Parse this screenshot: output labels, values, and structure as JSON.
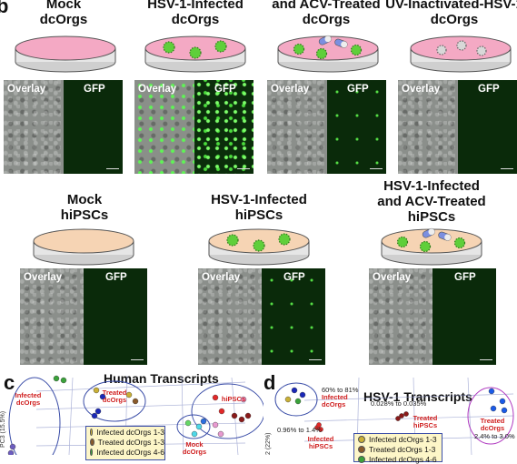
{
  "panel_a": {
    "letter": "b",
    "titles": [
      {
        "line1": "Mock",
        "line2": "dcOrgs"
      },
      {
        "line1": "HSV-1-Infected",
        "line2": "dcOrgs"
      },
      {
        "line1": "and ACV-Treated",
        "line2": "dcOrgs"
      },
      {
        "line1": "UV-Inactivated-HSV-1",
        "line2": "dcOrgs"
      }
    ],
    "overlay_label": "Overlay",
    "gfp_label": "GFP"
  },
  "panel_b": {
    "titles": [
      {
        "line1": "Mock",
        "line2": "hiPSCs"
      },
      {
        "line1": "HSV-1-Infected",
        "line2": "hiPSCs"
      },
      {
        "line1": "HSV-1-Infected",
        "line2": "and ACV-Treated",
        "line3": "hiPSCs"
      }
    ],
    "overlay_label": "Overlay",
    "gfp_label": "GFP"
  },
  "panel_c": {
    "letter": "c",
    "title": "Human Transcripts",
    "axis_label": "PC3 (15.5%)",
    "groups": {
      "infected": "Infected\ndcOrgs",
      "treated": "Treated\ndcOrgs",
      "hipscs": "hiPSCs",
      "mock": "Mock\ndcOrgs"
    },
    "legend": [
      "Infected dcOrgs 1-3",
      "Treated dcOrgs 1-3",
      "Infected dcOrgs 4-6"
    ]
  },
  "panel_d": {
    "letter": "d",
    "title": "HSV-1 Transcripts",
    "axis_label": "2 (22%)",
    "groups": {
      "infected_dcorgs": "Infected\ndcOrgs",
      "treated_hipscs": "Treated\nhiPSCs",
      "infected_hipscs": "Infected\nhiPSCs",
      "treated_dcorgs": "Treated\ndcOrgs"
    },
    "ranges": {
      "infected_dcorgs": "60% to 81%",
      "treated_hipscs": "0.028% to 0.035%",
      "infected_hipscs": "0.96% to 1.4%",
      "treated_dcorgs": "2.4% to 3.0%"
    },
    "legend": [
      "Infected dcOrgs 1-3",
      "Treated dcOrgs 1-3",
      "Infected dcOrgs 4-6"
    ]
  },
  "colors": {
    "dish_pink": "#f4a9c4",
    "dish_peach": "#f6d4b4",
    "virus_green": "#5fcf3a",
    "group_red": "#d02020",
    "legend_bg": "#fdf6c8"
  }
}
